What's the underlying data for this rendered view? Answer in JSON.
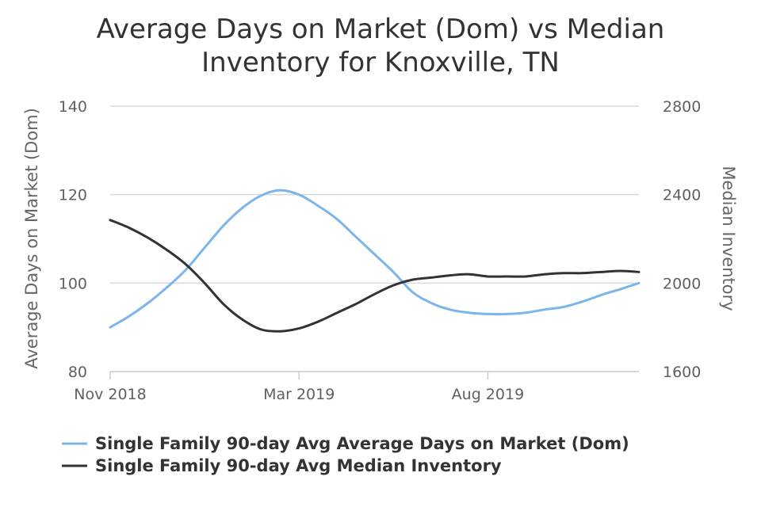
{
  "chart_data": {
    "type": "line",
    "title_lines": [
      "Average Days on Market (Dom) vs Median",
      "Inventory for Knoxville, TN"
    ],
    "xlabel": "",
    "ylabel_left": "Average Days on Market (Dom)",
    "ylabel_right": "Median Inventory",
    "ylim_left": [
      80,
      140
    ],
    "ylim_right": [
      1600,
      2800
    ],
    "yticks_left": [
      "140",
      "120",
      "100",
      "80"
    ],
    "yticks_right": [
      "2800",
      "2400",
      "2000",
      "1600"
    ],
    "x_range": [
      0,
      14
    ],
    "x_ticks": [
      {
        "x": 0,
        "label": "Nov 2018"
      },
      {
        "x": 5,
        "label": "Mar 2019"
      },
      {
        "x": 10,
        "label": "Aug 2019"
      }
    ],
    "grid": true,
    "legend_position": "bottom",
    "series": [
      {
        "name": "Single Family 90-day Avg Average Days on Market (Dom)",
        "axis": "left",
        "color": "#7cb5ec",
        "x": [
          0,
          0.5,
          1,
          1.5,
          2,
          2.5,
          3,
          3.5,
          4,
          4.5,
          5,
          5.5,
          6,
          6.5,
          7,
          7.5,
          8,
          8.5,
          9,
          9.5,
          10,
          10.5,
          11,
          11.5,
          12,
          12.5,
          13,
          13.5,
          14
        ],
        "values": [
          90,
          92.5,
          95.5,
          99,
          103,
          108,
          113,
          117,
          119.8,
          121,
          120,
          117.5,
          114.5,
          110.5,
          106.5,
          102.5,
          98,
          95.5,
          94,
          93.3,
          93,
          93,
          93.3,
          94,
          94.6,
          95.8,
          97.3,
          98.6,
          100
        ]
      },
      {
        "name": "Single Family 90-day Avg Median Inventory",
        "axis": "right",
        "color": "#333333",
        "x": [
          0,
          0.5,
          1,
          1.5,
          2,
          2.5,
          3,
          3.5,
          4,
          4.5,
          5,
          5.5,
          6,
          6.5,
          7,
          7.5,
          8,
          8.5,
          9,
          9.5,
          10,
          10.5,
          11,
          11.5,
          12,
          12.5,
          13,
          13.5,
          14
        ],
        "values": [
          2285,
          2250,
          2205,
          2150,
          2085,
          2000,
          1905,
          1835,
          1790,
          1782,
          1795,
          1825,
          1865,
          1905,
          1950,
          1990,
          2015,
          2025,
          2035,
          2040,
          2030,
          2030,
          2030,
          2040,
          2045,
          2045,
          2050,
          2055,
          2050
        ]
      }
    ]
  }
}
